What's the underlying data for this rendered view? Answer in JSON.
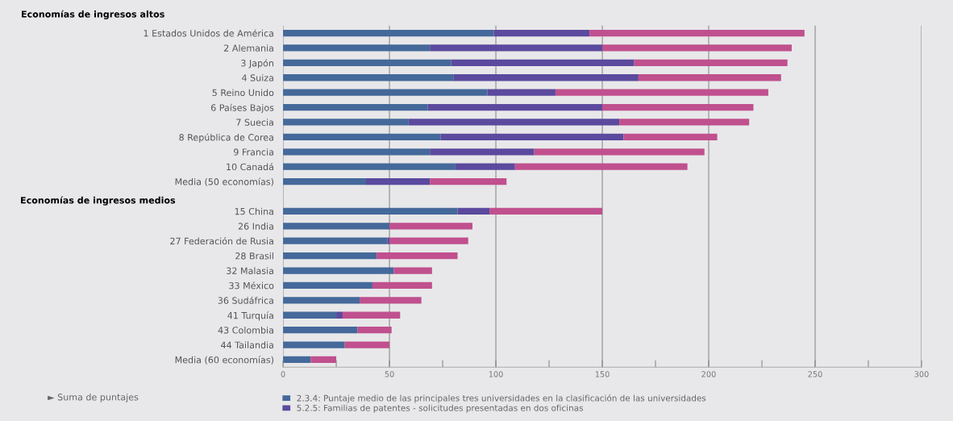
{
  "chart_data": {
    "type": "bar",
    "orientation": "horizontal",
    "stacked": true,
    "title": "Economías de ingresos altos",
    "categories": [
      "1 Estados Unidos de América",
      "2 Alemania",
      "3 Japón",
      "4 Suiza",
      "5 Reino Unido",
      "6 Países Bajos",
      "7 Suecia",
      "8 República de Corea",
      "9 Francia",
      "10 Canadá",
      "Media (50 economías)",
      null,
      "15 China",
      "26 India",
      "27 Federación de Rusia",
      "28 Brasil",
      "32 Malasia",
      "33 México",
      "36 Sudáfrica",
      "41 Turquía",
      "43 Colombia",
      "44 Tailandia",
      "Media (60 economías)"
    ],
    "series": [
      {
        "name": "2.3.4: Puntaje medio de las principales tres universidades en la clasificación de las universidades",
        "color": "#44699a",
        "values": [
          99,
          69,
          79,
          80,
          96,
          68,
          59,
          74,
          69,
          81,
          39,
          null,
          82,
          50,
          49,
          44,
          52,
          42,
          36,
          25,
          35,
          29,
          13
        ]
      },
      {
        "name": "5.2.5: Familias de patentes - solicitudes presentadas en dos oficinas",
        "color": "#5b4a9e",
        "values": [
          45,
          81,
          86,
          87,
          32,
          82,
          99,
          86,
          49,
          28,
          30,
          null,
          15,
          0,
          1,
          0,
          0,
          0,
          0,
          3,
          0,
          0,
          0
        ]
      },
      {
        "color": "#c0508e",
        "values": [
          101,
          89,
          72,
          67,
          100,
          71,
          61,
          44,
          80,
          81,
          36,
          null,
          53,
          39,
          37,
          38,
          18,
          28,
          29,
          27,
          16,
          21,
          12
        ]
      }
    ],
    "xlim": [
      0,
      300
    ],
    "xticks": [
      0,
      {
        "value": 25,
        "label": null
      },
      50,
      {
        "value": 75,
        "label": null
      },
      100,
      {
        "value": 125,
        "label": null
      },
      150,
      {
        "value": 175,
        "label": null
      },
      200,
      {
        "value": 225,
        "label": null
      },
      250,
      {
        "value": 275,
        "label": null
      },
      300
    ],
    "grid": "x",
    "legend": "bottom",
    "annotations": [
      "Economías de ingresos medios",
      "► Suma de puntajes"
    ]
  }
}
